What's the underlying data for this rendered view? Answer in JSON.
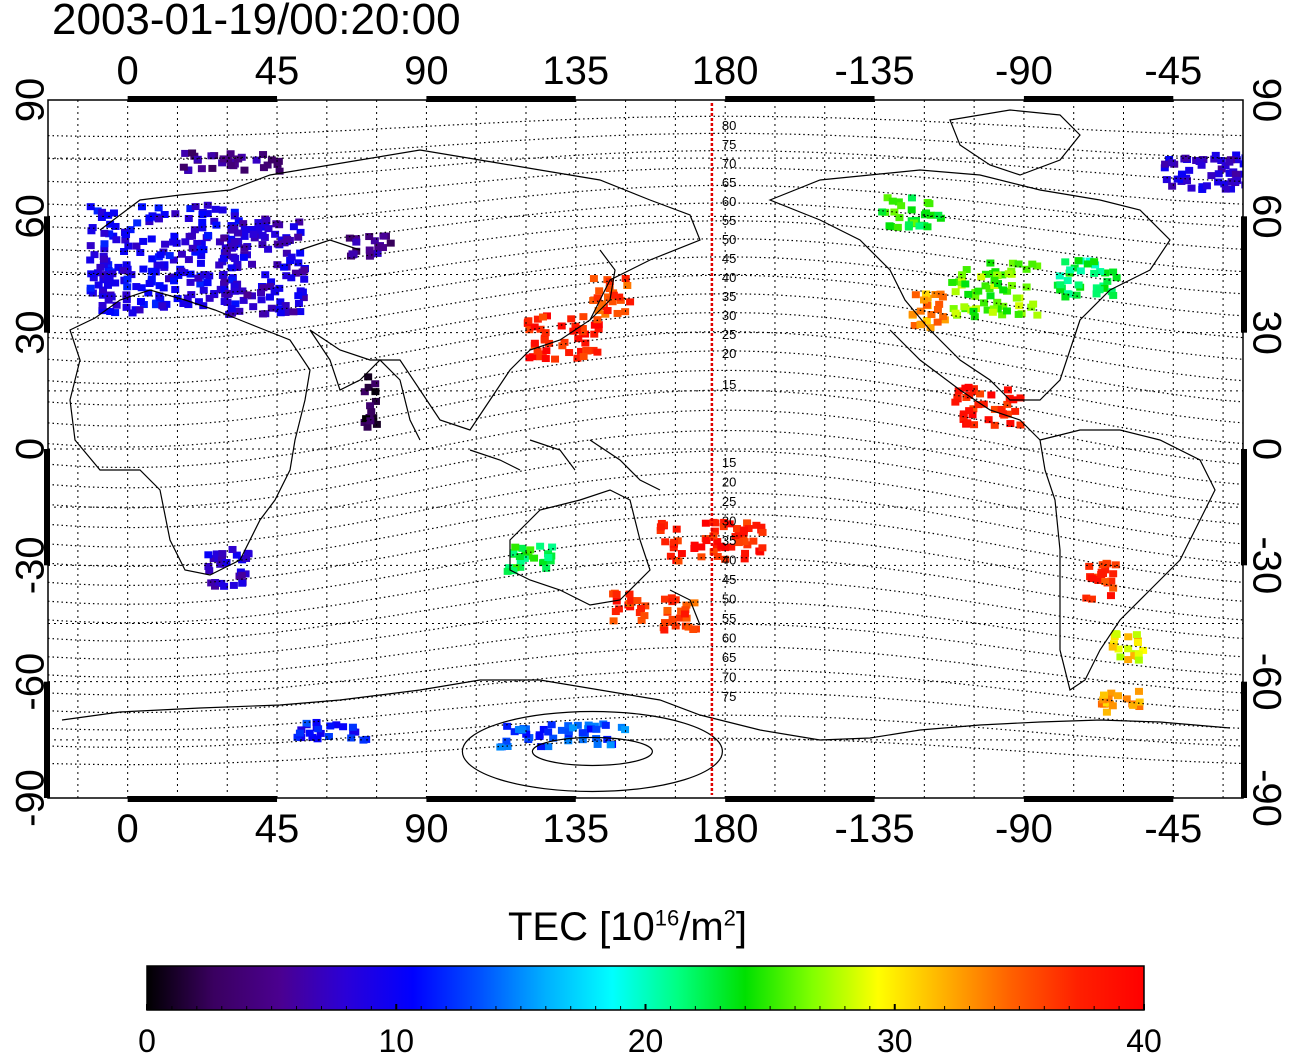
{
  "title": "2003-01-19/00:20:00",
  "map": {
    "lon_ticks": [
      {
        "value": 0,
        "label": "0"
      },
      {
        "value": 45,
        "label": "45"
      },
      {
        "value": 90,
        "label": "90"
      },
      {
        "value": 135,
        "label": "135"
      },
      {
        "value": 180,
        "label": "180"
      },
      {
        "value": 225,
        "label": "-135"
      },
      {
        "value": 270,
        "label": "-90"
      },
      {
        "value": 315,
        "label": "-45"
      }
    ],
    "lat_ticks": [
      {
        "value": 90,
        "label": "90"
      },
      {
        "value": 60,
        "label": "60"
      },
      {
        "value": 30,
        "label": "30"
      },
      {
        "value": 0,
        "label": "0"
      },
      {
        "value": -30,
        "label": "-30"
      },
      {
        "value": -60,
        "label": "-60"
      },
      {
        "value": -90,
        "label": "-90"
      }
    ],
    "lon_range": [
      -24,
      336
    ],
    "lat_range": [
      -90,
      90
    ],
    "grid": "dotted, every 15 degrees",
    "meridian_line": {
      "lon": 176,
      "color": "#e00000"
    },
    "contour_labels_north": [
      "80",
      "75",
      "70",
      "65",
      "60",
      "55",
      "50",
      "45",
      "40",
      "35",
      "30",
      "25",
      "20",
      "15"
    ],
    "contour_labels_south": [
      "15",
      "20",
      "25",
      "30",
      "35",
      "40",
      "45",
      "50",
      "55",
      "60",
      "65",
      "70",
      "75"
    ]
  },
  "colorbar": {
    "title_prefix": "TEC  [10",
    "title_sup1": "16",
    "title_mid": "/m",
    "title_sup2": "2",
    "title_suffix": "]",
    "ticks": [
      "0",
      "10",
      "20",
      "30",
      "40"
    ],
    "min": 0,
    "max": 40,
    "colors": [
      "#000000",
      "#3a0060",
      "#4b0090",
      "#2a00d8",
      "#0000ff",
      "#0050ff",
      "#00b0ff",
      "#00ffff",
      "#00ff80",
      "#00e000",
      "#80ff00",
      "#ffff00",
      "#ffb000",
      "#ff6000",
      "#ff2000",
      "#ff0000"
    ]
  },
  "tec_patches": [
    {
      "lon": 10,
      "lat": 50,
      "w": 45,
      "h": 28,
      "value": 9.5
    },
    {
      "lon": 40,
      "lat": 48,
      "w": 25,
      "h": 25,
      "value": 8
    },
    {
      "lon": 72,
      "lat": 53,
      "w": 14,
      "h": 6,
      "value": 5
    },
    {
      "lon": 130,
      "lat": 30,
      "w": 22,
      "h": 12,
      "value": 38
    },
    {
      "lon": 145,
      "lat": 40,
      "w": 12,
      "h": 10,
      "value": 36
    },
    {
      "lon": 260,
      "lat": 42,
      "w": 26,
      "h": 14,
      "value": 26
    },
    {
      "lon": 240,
      "lat": 37,
      "w": 10,
      "h": 10,
      "value": 33
    },
    {
      "lon": 288,
      "lat": 45,
      "w": 18,
      "h": 10,
      "value": 22
    },
    {
      "lon": 235,
      "lat": 62,
      "w": 18,
      "h": 8,
      "value": 24
    },
    {
      "lon": 258,
      "lat": 12,
      "w": 20,
      "h": 10,
      "value": 38
    },
    {
      "lon": 175,
      "lat": -23,
      "w": 32,
      "h": 10,
      "value": 38
    },
    {
      "lon": 165,
      "lat": -42,
      "w": 10,
      "h": 10,
      "value": 36
    },
    {
      "lon": 150,
      "lat": -40,
      "w": 10,
      "h": 8,
      "value": 37
    },
    {
      "lon": 120,
      "lat": -28,
      "w": 14,
      "h": 8,
      "value": 23
    },
    {
      "lon": 292,
      "lat": -33,
      "w": 10,
      "h": 10,
      "value": 37
    },
    {
      "lon": 300,
      "lat": -50,
      "w": 10,
      "h": 8,
      "value": 30
    },
    {
      "lon": 298,
      "lat": -64,
      "w": 12,
      "h": 6,
      "value": 32
    },
    {
      "lon": 30,
      "lat": -30,
      "w": 14,
      "h": 10,
      "value": 8
    },
    {
      "lon": 72,
      "lat": 13,
      "w": 4,
      "h": 14,
      "value": 2
    },
    {
      "lon": 330,
      "lat": 72,
      "w": 40,
      "h": 10,
      "value": 8
    },
    {
      "lon": 30,
      "lat": 75,
      "w": 30,
      "h": 5,
      "value": 5
    },
    {
      "lon": 130,
      "lat": -73,
      "w": 40,
      "h": 6,
      "value": 13
    },
    {
      "lon": 60,
      "lat": -72,
      "w": 22,
      "h": 5,
      "value": 11
    }
  ]
}
